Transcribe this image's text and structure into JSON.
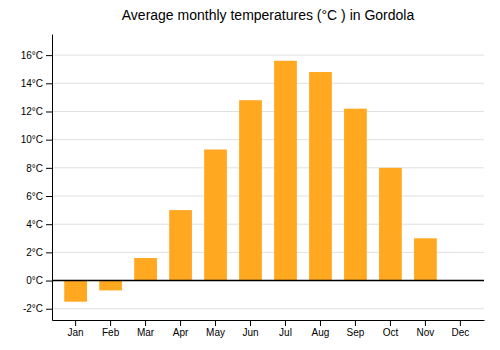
{
  "chart_data": {
    "type": "bar",
    "title": "Average monthly temperatures (°C ) in Gordola",
    "categories": [
      "Jan",
      "Feb",
      "Mar",
      "Apr",
      "May",
      "Jun",
      "Jul",
      "Aug",
      "Sep",
      "Oct",
      "Nov",
      "Dec"
    ],
    "values": [
      -1.5,
      -0.7,
      1.6,
      5.0,
      9.3,
      12.8,
      15.6,
      14.8,
      12.2,
      8.0,
      3.0,
      0.0
    ],
    "color": "#FFA820",
    "ylim": [
      -2.8,
      17.5
    ],
    "yticks": [
      {
        "value": -2,
        "label": "-2°C"
      },
      {
        "value": 0,
        "label": "0°C"
      },
      {
        "value": 2,
        "label": "2°C"
      },
      {
        "value": 4,
        "label": "4°C"
      },
      {
        "value": 6,
        "label": "6°C"
      },
      {
        "value": 8,
        "label": "8°C"
      },
      {
        "value": 10,
        "label": "10°C"
      },
      {
        "value": 12,
        "label": "12°C"
      },
      {
        "value": 14,
        "label": "14°C"
      },
      {
        "value": 16,
        "label": "16°C"
      }
    ],
    "grid": true
  }
}
